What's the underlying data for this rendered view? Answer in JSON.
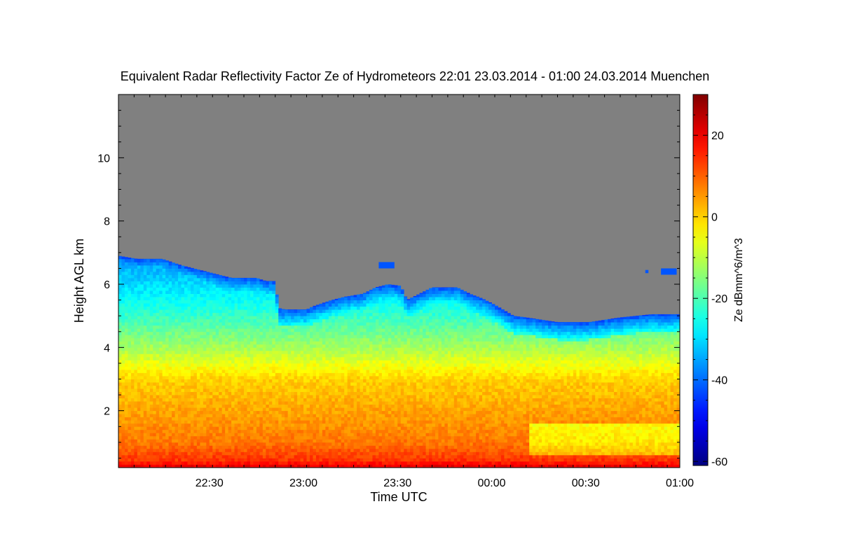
{
  "chart_data": {
    "type": "heatmap",
    "title": "Equivalent Radar Reflectivity Factor Ze of Hydrometeors   22:01 23.03.2014 - 01:00 24.03.2014 Muenchen",
    "xlabel": "Time UTC",
    "ylabel": "Height AGL km",
    "x_tick_labels": [
      "22:30",
      "23:00",
      "23:30",
      "00:00",
      "00:30",
      "01:00"
    ],
    "x_ticks_min": [
      29,
      59,
      89,
      119,
      149,
      179
    ],
    "xlim_min": [
      0,
      179
    ],
    "y_tick_labels": [
      "2",
      "4",
      "6",
      "8",
      "10"
    ],
    "y_ticks": [
      2,
      4,
      6,
      8,
      10
    ],
    "ylim": [
      0.2,
      12.0
    ],
    "colorbar": {
      "label": "Ze dBmm^6/m^3",
      "tick_labels": [
        "20",
        "0",
        "-20",
        "-40",
        "-60"
      ],
      "ticks": [
        20,
        0,
        -20,
        -40,
        -60
      ],
      "range": [
        -61,
        30
      ],
      "colormap": "jet"
    },
    "no_signal_color": "#808080",
    "echo_top_km": {
      "t_min": [
        0,
        6,
        10,
        14,
        20,
        24,
        28,
        32,
        36,
        40,
        44,
        47,
        50,
        51,
        53,
        60,
        62,
        68,
        72,
        78,
        82,
        86,
        90,
        92,
        96,
        100,
        104,
        108,
        112,
        116,
        120,
        126,
        130,
        140,
        150,
        160,
        170,
        179
      ],
      "height": [
        6.9,
        6.8,
        6.8,
        6.8,
        6.6,
        6.5,
        6.4,
        6.3,
        6.2,
        6.2,
        6.2,
        6.1,
        6.1,
        5.25,
        5.2,
        5.2,
        5.3,
        5.5,
        5.6,
        5.7,
        5.9,
        6.0,
        5.95,
        5.5,
        5.7,
        5.9,
        5.9,
        5.9,
        5.7,
        5.55,
        5.35,
        5.0,
        4.95,
        4.8,
        4.8,
        4.95,
        5.05,
        5.05
      ]
    },
    "isolated_echoes": [
      {
        "t_start": 83,
        "t_end": 88,
        "h_bottom": 6.5,
        "h_top": 6.7
      },
      {
        "t_start": 168,
        "t_end": 169,
        "h_bottom": 6.35,
        "h_top": 6.45
      },
      {
        "t_start": 173,
        "t_end": 178,
        "h_bottom": 6.3,
        "h_top": 6.5
      }
    ],
    "ze_profile": {
      "height_km": [
        0.25,
        0.45,
        1.0,
        2.0,
        3.0,
        3.5,
        4.0,
        4.6,
        5.2,
        6.0,
        6.9
      ],
      "ze_dbz": [
        20,
        14,
        8,
        4,
        0,
        -6,
        -12,
        -18,
        -24,
        -30,
        -36
      ]
    }
  }
}
